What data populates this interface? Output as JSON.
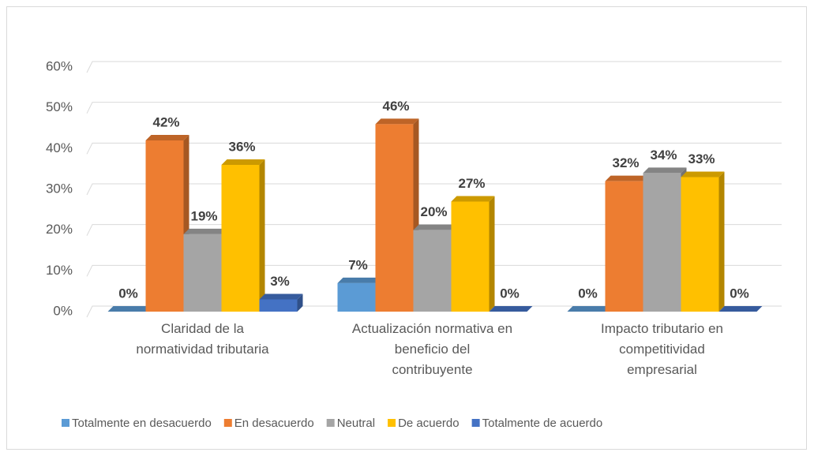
{
  "chart_data": {
    "type": "bar3d",
    "categories": [
      [
        "Claridad de la",
        "normatividad tributaria"
      ],
      [
        "Actualización normativa en",
        "beneficio del",
        "contribuyente"
      ],
      [
        "Impacto tributario en",
        "competitividad",
        "empresarial"
      ]
    ],
    "series": [
      {
        "name": "Totalmente en desacuerdo",
        "color": "#5b9bd5",
        "values": [
          0,
          7,
          0
        ],
        "value_labels": [
          "0%",
          "7%",
          "0%"
        ]
      },
      {
        "name": "En desacuerdo",
        "color": "#ed7d31",
        "values": [
          42,
          46,
          32
        ],
        "value_labels": [
          "42%",
          "46%",
          "32%"
        ]
      },
      {
        "name": "Neutral",
        "color": "#a5a5a5",
        "values": [
          19,
          20,
          34
        ],
        "value_labels": [
          "19%",
          "20%",
          "34%"
        ]
      },
      {
        "name": "De acuerdo",
        "color": "#ffc000",
        "values": [
          36,
          27,
          33
        ],
        "value_labels": [
          "36%",
          "27%",
          "33%"
        ]
      },
      {
        "name": "Totalmente de acuerdo",
        "color": "#4472c4",
        "values": [
          3,
          0,
          0
        ],
        "value_labels": [
          "3%",
          "0%",
          "0%"
        ]
      }
    ],
    "ylim": [
      0,
      60
    ],
    "yticks": [
      {
        "value": 0,
        "label": "0%"
      },
      {
        "value": 10,
        "label": "10%"
      },
      {
        "value": 20,
        "label": "20%"
      },
      {
        "value": 30,
        "label": "30%"
      },
      {
        "value": 40,
        "label": "40%"
      },
      {
        "value": 50,
        "label": "50%"
      },
      {
        "value": 60,
        "label": "60%"
      }
    ],
    "grid": true,
    "legend": "bottom"
  }
}
